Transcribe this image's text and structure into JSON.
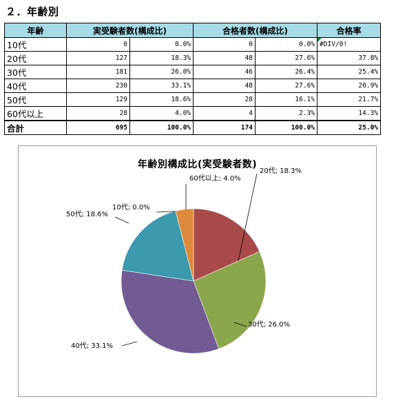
{
  "section_title": "２．年齢別",
  "table": {
    "headers": [
      "年齢",
      "実受験者数(構成比)",
      "",
      "合格者数(構成比)",
      "",
      "合格率"
    ],
    "rows": [
      {
        "label": "10代",
        "examinees": "0",
        "ex_ratio": "0.0%",
        "passers": "0",
        "pass_ratio": "0.0%",
        "pass_rate": "#DIV/0!"
      },
      {
        "label": "20代",
        "examinees": "127",
        "ex_ratio": "18.3%",
        "passers": "48",
        "pass_ratio": "27.6%",
        "pass_rate": "37.8%"
      },
      {
        "label": "30代",
        "examinees": "181",
        "ex_ratio": "26.0%",
        "passers": "46",
        "pass_ratio": "26.4%",
        "pass_rate": "25.4%"
      },
      {
        "label": "40代",
        "examinees": "230",
        "ex_ratio": "33.1%",
        "passers": "48",
        "pass_ratio": "27.6%",
        "pass_rate": "20.9%"
      },
      {
        "label": "50代",
        "examinees": "129",
        "ex_ratio": "18.6%",
        "passers": "28",
        "pass_ratio": "16.1%",
        "pass_rate": "21.7%"
      },
      {
        "label": "60代以上",
        "examinees": "28",
        "ex_ratio": "4.0%",
        "passers": "4",
        "pass_ratio": "2.3%",
        "pass_rate": "14.3%"
      }
    ],
    "total": {
      "label": "合計",
      "examinees": "695",
      "ex_ratio": "100.0%",
      "passers": "174",
      "pass_ratio": "100.0%",
      "pass_rate": "25.0%"
    }
  },
  "chart_data": {
    "type": "pie",
    "title": "年齢別構成比(実受験者数)",
    "slices": [
      {
        "label": "20代",
        "value": 18.3,
        "display": "20代; 18.3%",
        "color": "#a84a4a"
      },
      {
        "label": "30代",
        "value": 26.0,
        "display": "30代; 26.0%",
        "color": "#8ba74e"
      },
      {
        "label": "40代",
        "value": 33.1,
        "display": "40代; 33.1%",
        "color": "#725a92"
      },
      {
        "label": "50代",
        "value": 18.6,
        "display": "50代; 18.6%",
        "color": "#3d99ad"
      },
      {
        "label": "10代",
        "value": 0.0,
        "display": "10代; 0.0%",
        "color": "#4f81bd"
      },
      {
        "label": "60代以上",
        "value": 4.0,
        "display": "60代以上; 4.0%",
        "color": "#dd8a3c"
      }
    ]
  }
}
